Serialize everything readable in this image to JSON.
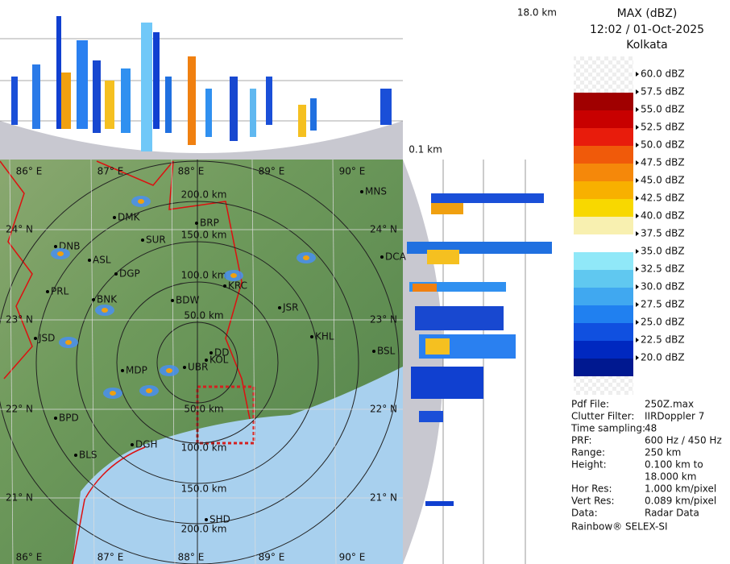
{
  "header": {
    "title": "MAX (dBZ)",
    "time": "12:02 / 01-Oct-2025",
    "site": "Kolkata"
  },
  "legend": [
    "60.0 dBZ",
    "57.5 dBZ",
    "55.0 dBZ",
    "52.5 dBZ",
    "50.0 dBZ",
    "47.5 dBZ",
    "45.0 dBZ",
    "42.5 dBZ",
    "40.0 dBZ",
    "37.5 dBZ",
    "35.0 dBZ",
    "32.5 dBZ",
    "30.0 dBZ",
    "27.5 dBZ",
    "25.0 dBZ",
    "22.5 dBZ",
    "20.0 dBZ"
  ],
  "profile": {
    "top_height": "18.0 km",
    "bottom_height": "0.1 km"
  },
  "info": [
    [
      "Pdf File:",
      "250Z.max"
    ],
    [
      "Clutter Filter:",
      "IIRDoppler 7"
    ],
    [
      "Time sampling:",
      "48"
    ],
    [
      "PRF:",
      "600 Hz / 450 Hz"
    ],
    [
      "Range:",
      "250 km"
    ],
    [
      "Height:",
      "0.100 km to"
    ],
    [
      "",
      "18.000 km"
    ],
    [
      "Hor Res:",
      "1.000 km/pixel"
    ],
    [
      "Vert Res:",
      "0.089 km/pixel"
    ],
    [
      "Data:",
      "Radar Data"
    ]
  ],
  "footer": "Rainbow® SELEX-SI",
  "map": {
    "lon_labels": [
      "86° E",
      "87° E",
      "88° E",
      "89° E",
      "90° E"
    ],
    "lat_labels": [
      "24° N",
      "23° N",
      "22° N",
      "21° N"
    ],
    "ring_labels": [
      "200.0 km",
      "150.0 km",
      "100.0 km",
      "50.0 km",
      "50.0 km",
      "100.0 km",
      "150.0 km",
      "200.0 km"
    ],
    "stations": [
      "DMK",
      "BRP",
      "SUR",
      "DNB",
      "ASL",
      "DGP",
      "PRL",
      "KRC",
      "BNK",
      "BDW",
      "JSR",
      "JSD",
      "KHL",
      "DD",
      "KOL",
      "MDP",
      "UBR",
      "BSL",
      "BPD",
      "DGH",
      "BLS",
      "SHD",
      "MNS",
      "DCA"
    ]
  }
}
